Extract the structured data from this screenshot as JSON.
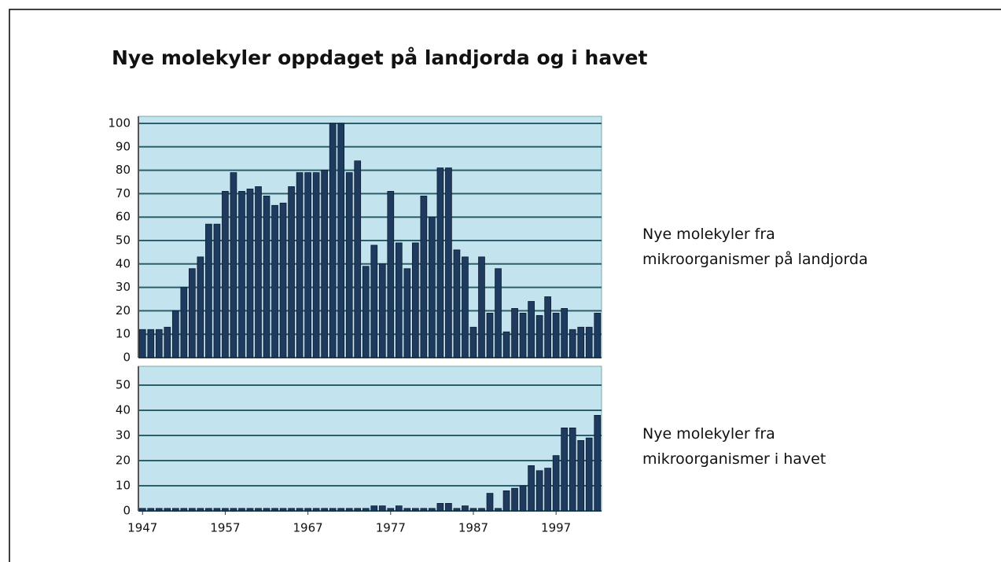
{
  "chart_data": [
    {
      "type": "bar",
      "title": "Nye molekyler oppdaget på landjorda og i havet",
      "x": [
        1947,
        1948,
        1949,
        1950,
        1951,
        1952,
        1953,
        1954,
        1955,
        1956,
        1957,
        1958,
        1959,
        1960,
        1961,
        1962,
        1963,
        1964,
        1965,
        1966,
        1967,
        1968,
        1969,
        1970,
        1971,
        1972,
        1973,
        1974,
        1975,
        1976,
        1977,
        1978,
        1979,
        1980,
        1981,
        1982,
        1983,
        1984,
        1985,
        1986,
        1987,
        1988,
        1989,
        1990,
        1991,
        1992,
        1993,
        1994,
        1995,
        1996,
        1997,
        1998,
        1999,
        2000,
        2001,
        2002
      ],
      "series": [
        {
          "name": "Nye molekyler fra mikroorganismer på landjorda",
          "color": "#1f3a5f",
          "values": [
            12,
            12,
            12,
            13,
            20,
            30,
            38,
            43,
            57,
            57,
            71,
            79,
            71,
            72,
            73,
            69,
            65,
            66,
            73,
            79,
            79,
            79,
            80,
            100,
            100,
            79,
            84,
            39,
            48,
            40,
            71,
            49,
            38,
            49,
            69,
            60,
            81,
            81,
            46,
            43,
            13,
            43,
            19,
            38,
            11,
            21,
            19,
            24,
            18,
            26,
            19,
            21,
            12,
            13,
            13,
            19
          ]
        }
      ],
      "xlim": [
        1946.5,
        2002.5
      ],
      "ylim": [
        0,
        100
      ],
      "yticks": [
        0,
        10,
        20,
        30,
        40,
        50,
        60,
        70,
        80,
        90,
        100
      ],
      "grid": true
    },
    {
      "type": "bar",
      "x": [
        1947,
        1948,
        1949,
        1950,
        1951,
        1952,
        1953,
        1954,
        1955,
        1956,
        1957,
        1958,
        1959,
        1960,
        1961,
        1962,
        1963,
        1964,
        1965,
        1966,
        1967,
        1968,
        1969,
        1970,
        1971,
        1972,
        1973,
        1974,
        1975,
        1976,
        1977,
        1978,
        1979,
        1980,
        1981,
        1982,
        1983,
        1984,
        1985,
        1986,
        1987,
        1988,
        1989,
        1990,
        1991,
        1992,
        1993,
        1994,
        1995,
        1996,
        1997,
        1998,
        1999,
        2000,
        2001,
        2002
      ],
      "series": [
        {
          "name": "Nye molekyler fra mikroorganismer i havet",
          "color": "#1f3a5f",
          "values": [
            1,
            1,
            1,
            1,
            1,
            1,
            1,
            1,
            1,
            1,
            1,
            1,
            1,
            1,
            1,
            1,
            1,
            1,
            1,
            1,
            1,
            1,
            1,
            1,
            1,
            1,
            1,
            1,
            2,
            2,
            1,
            2,
            1,
            1,
            1,
            1,
            3,
            3,
            1,
            2,
            1,
            1,
            7,
            1,
            8,
            9,
            10,
            18,
            16,
            17,
            22,
            33,
            33,
            28,
            29,
            38
          ]
        }
      ],
      "xlim": [
        1946.5,
        2002.5
      ],
      "ylim": [
        0,
        50
      ],
      "yticks": [
        0,
        10,
        20,
        30,
        40,
        50
      ],
      "xticks": [
        1947,
        1957,
        1967,
        1977,
        1987,
        1997
      ],
      "grid": true
    }
  ]
}
